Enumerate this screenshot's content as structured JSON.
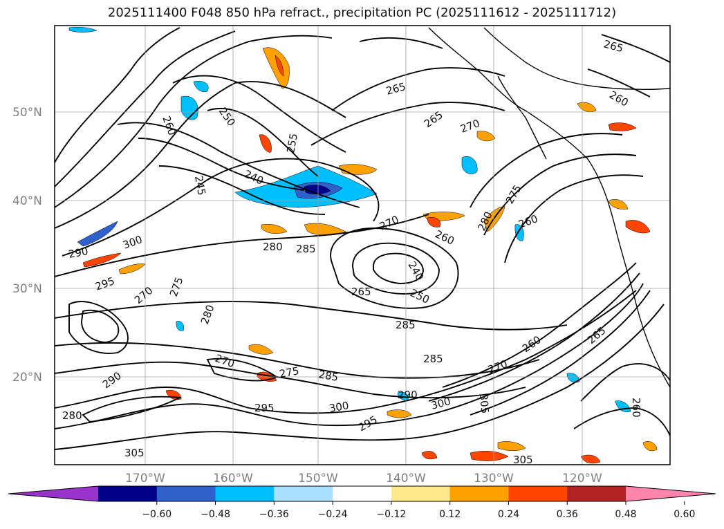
{
  "title": "2025111400 F048 850 hPa refract., precipitation PC (2025111612 - 2025111712)",
  "lat_labels": [
    "50°N",
    "40°N",
    "30°N",
    "20°N"
  ],
  "lon_labels": [
    "170°W",
    "160°W",
    "150°W",
    "140°W",
    "130°W",
    "120°W"
  ],
  "contour_labels": [
    "265",
    "265",
    "265",
    "260",
    "260",
    "260",
    "250",
    "255",
    "240",
    "245",
    "270",
    "270",
    "275",
    "280",
    "285",
    "290",
    "295",
    "300",
    "305",
    "280",
    "275",
    "270",
    "265",
    "260",
    "250",
    "240",
    "285",
    "285",
    "290",
    "275",
    "270",
    "280",
    "295",
    "300",
    "295",
    "300",
    "305",
    "305",
    "260",
    "280",
    "285",
    "290",
    "270",
    "265",
    "260"
  ],
  "colorbar": {
    "ticks": [
      "−0.60",
      "−0.48",
      "−0.36",
      "−0.24",
      "−0.12",
      "0.12",
      "0.24",
      "0.36",
      "0.48",
      "0.60"
    ],
    "colors": [
      "#9933cc",
      "#00008b",
      "#3060cc",
      "#00bfff",
      "#aadfff",
      "#ffffff",
      "#ffe88a",
      "#ffa200",
      "#ff4500",
      "#b22222",
      "#ff85ad"
    ]
  }
}
